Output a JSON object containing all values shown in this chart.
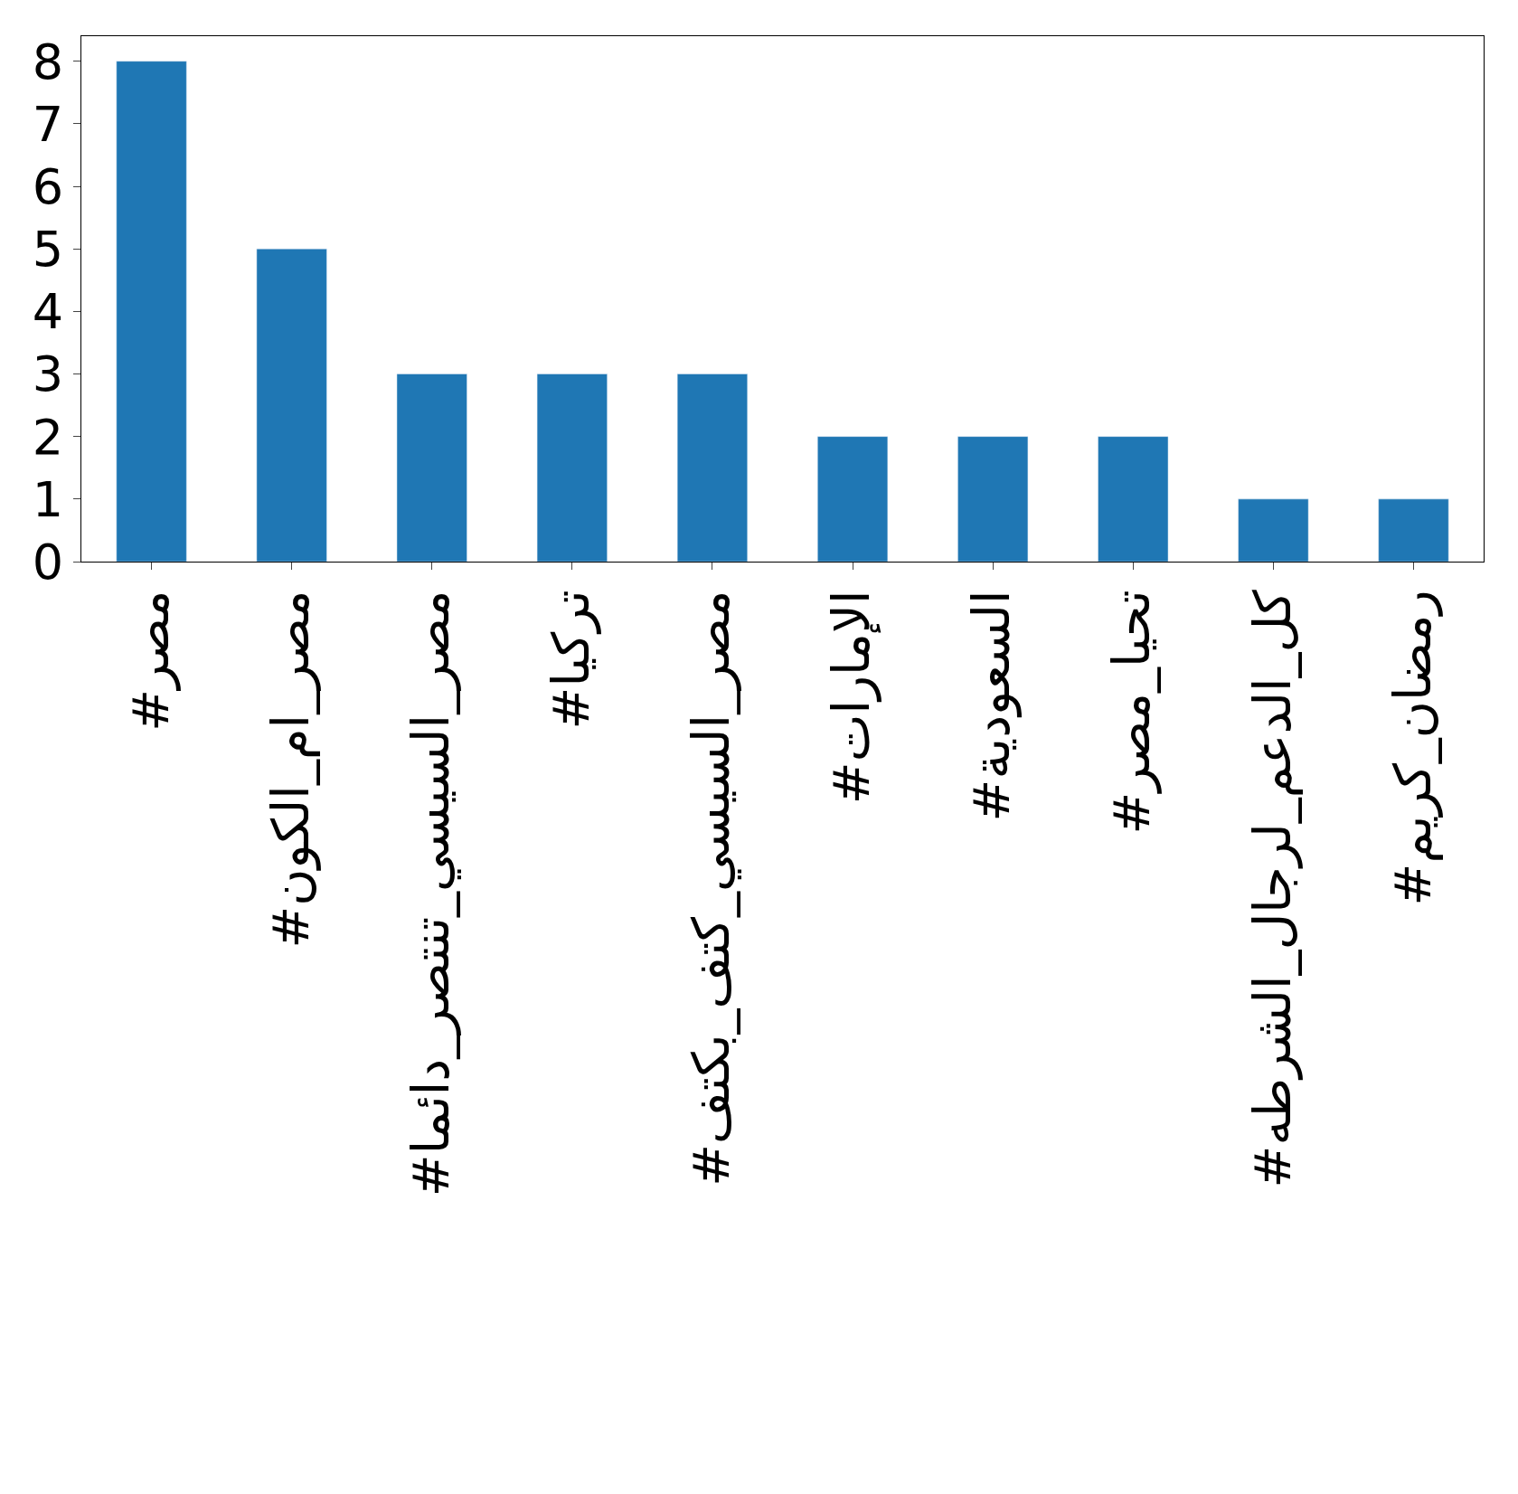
{
  "chart_data": {
    "type": "bar",
    "categories": [
      "#مصر",
      "#مصر_ام_الكون",
      "#مصر_السيسي_تنتصر_دائما",
      "#تركيا",
      "#مصر_السيسي_كتف_بكتف",
      "#الإمارات",
      "#السعودية",
      "#تحيا_مصر",
      "#كل_الدعم_لرجال_الشرطه",
      "#رمضان_كريم"
    ],
    "values": [
      8,
      5,
      3,
      3,
      3,
      2,
      2,
      2,
      1,
      1
    ],
    "color": "#1f77b4",
    "ylim": [
      0,
      8.4
    ],
    "yticks": [
      0,
      1,
      2,
      3,
      4,
      5,
      6,
      7,
      8
    ]
  }
}
